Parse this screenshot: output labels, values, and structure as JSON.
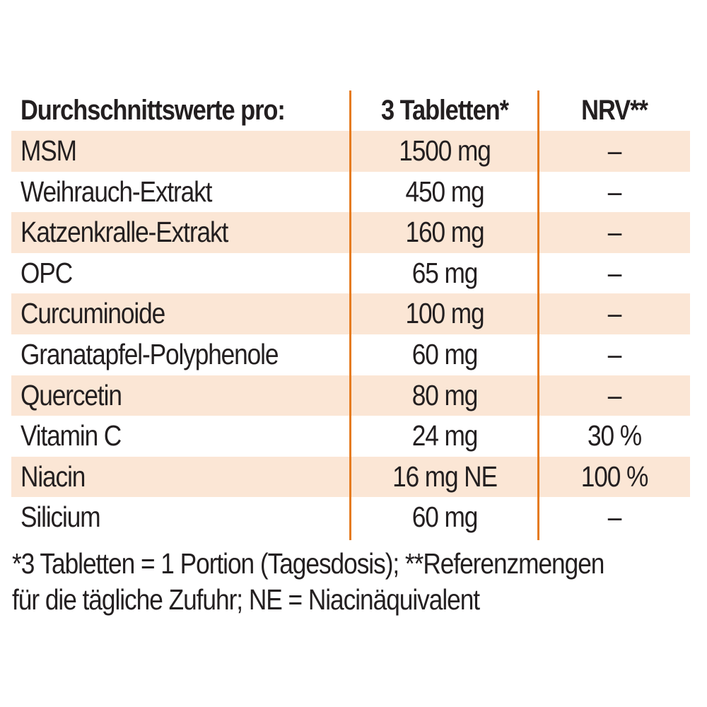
{
  "table": {
    "header": {
      "name": "Durchschnittswerte pro:",
      "amount": "3 Tabletten*",
      "nrv": "NRV**"
    },
    "rows": [
      {
        "name": "MSM",
        "amount": "1500 mg",
        "nrv": "–"
      },
      {
        "name": "Weihrauch-Extrakt",
        "amount": "450 mg",
        "nrv": "–"
      },
      {
        "name": "Katzenkralle-Extrakt",
        "amount": "160 mg",
        "nrv": "–"
      },
      {
        "name": "OPC",
        "amount": "65 mg",
        "nrv": "–"
      },
      {
        "name": "Curcuminoide",
        "amount": "100 mg",
        "nrv": "–"
      },
      {
        "name": "Granatapfel-Polyphenole",
        "amount": "60 mg",
        "nrv": "–"
      },
      {
        "name": "Quercetin",
        "amount": "80 mg",
        "nrv": "–"
      },
      {
        "name": "Vitamin C",
        "amount": "24 mg",
        "nrv": "30 %"
      },
      {
        "name": "Niacin",
        "amount": "16 mg NE",
        "nrv": "100 %"
      },
      {
        "name": "Silicium",
        "amount": "60 mg",
        "nrv": "–"
      }
    ]
  },
  "footnote": {
    "line1": "*3 Tabletten = 1 Portion (Tagesdosis); **Referenzmengen",
    "line2": "für die tägliche Zufuhr; NE = Niacinäquivalent"
  },
  "colors": {
    "row_shade": "#fbe6d5",
    "divider": "#e57b1f",
    "text": "#231f20"
  }
}
